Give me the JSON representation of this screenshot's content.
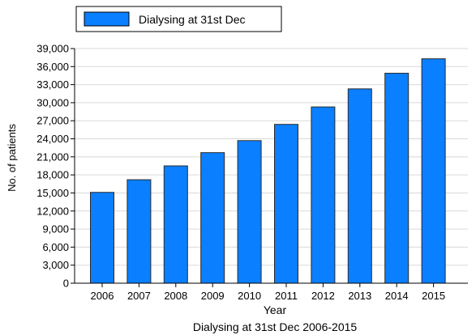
{
  "chart_data": {
    "type": "bar",
    "title": "",
    "caption": "Dialysing at 31st Dec 2006-2015",
    "xlabel": "Year",
    "ylabel": "No. of patients",
    "categories": [
      "2006",
      "2007",
      "2008",
      "2009",
      "2010",
      "2011",
      "2012",
      "2013",
      "2014",
      "2015"
    ],
    "series": [
      {
        "name": "Dialysing at 31st Dec",
        "color": "#0a7fff",
        "values": [
          15100,
          17200,
          19500,
          21700,
          23700,
          26400,
          29300,
          32300,
          34900,
          37300
        ]
      }
    ],
    "ylim": [
      0,
      39000
    ],
    "yticks": [
      "0",
      "3,000",
      "6,000",
      "9,000",
      "12,000",
      "15,000",
      "18,000",
      "21,000",
      "24,000",
      "27,000",
      "30,000",
      "33,000",
      "36,000",
      "39,000"
    ],
    "grid": true,
    "legend_position": "top-left"
  }
}
